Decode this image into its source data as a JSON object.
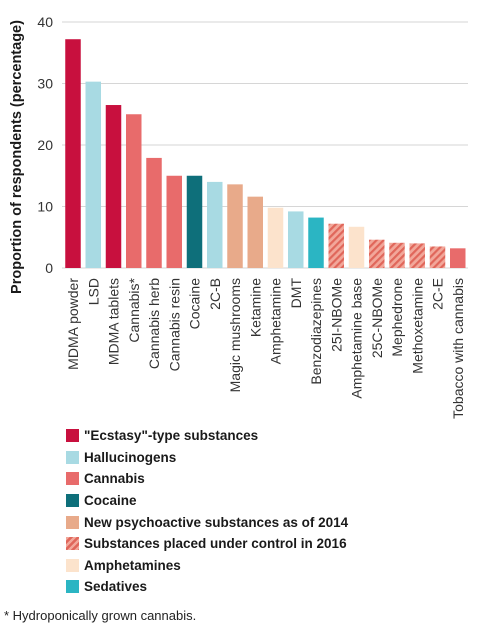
{
  "colors": {
    "ecstasy": "#C8103E",
    "hallucinogens": "#A8DAE3",
    "cannabis": "#E86B6B",
    "cocaine": "#0E6F7A",
    "nps": "#E8AA8A",
    "controlled_2016": "#F2A79A",
    "controlled_2016_stripe": "#E0665A",
    "amphetamines": "#FCE3CC",
    "sedatives": "#2BB5C3",
    "grid": "#d6d6d6",
    "tick_text": "#333333"
  },
  "chart_data": {
    "type": "bar",
    "ylabel": "Proportion of respondents (percentage)",
    "ylim": [
      0,
      40
    ],
    "yticks": [
      0,
      10,
      20,
      30,
      40
    ],
    "grid": true,
    "categories": [
      "MDMA powder",
      "LSD",
      "MDMA tablets",
      "Cannabis*",
      "Cannabis herb",
      "Cannabis resin",
      "Cocaine",
      "2C-B",
      "Magic mushrooms",
      "Ketamine",
      "Amphetamine",
      "DMT",
      "Benzodiazepines",
      "25I-NBOMe",
      "Amphetamine base",
      "25C-NBOMe",
      "Mephedrone",
      "Methoxetamine",
      "2C-E",
      "Tobacco with cannabis"
    ],
    "values": [
      37.2,
      30.3,
      26.5,
      25.0,
      17.9,
      15.0,
      15.0,
      14.0,
      13.6,
      11.6,
      9.8,
      9.2,
      8.2,
      7.2,
      6.7,
      4.6,
      4.1,
      4.0,
      3.5,
      3.2
    ],
    "groups": [
      "ecstasy",
      "hallucinogens",
      "ecstasy",
      "cannabis",
      "cannabis",
      "cannabis",
      "cocaine",
      "hallucinogens",
      "nps",
      "nps",
      "amphetamines",
      "hallucinogens",
      "sedatives",
      "controlled_2016",
      "amphetamines",
      "controlled_2016",
      "controlled_2016",
      "controlled_2016",
      "controlled_2016",
      "cannabis"
    ]
  },
  "legend": [
    {
      "key": "ecstasy",
      "label": "\"Ecstasy\"-type substances"
    },
    {
      "key": "hallucinogens",
      "label": "Hallucinogens"
    },
    {
      "key": "cannabis",
      "label": "Cannabis"
    },
    {
      "key": "cocaine",
      "label": "Cocaine"
    },
    {
      "key": "nps",
      "label": "New psychoactive substances as of 2014"
    },
    {
      "key": "controlled_2016",
      "label": "Substances placed under control in 2016"
    },
    {
      "key": "amphetamines",
      "label": "Amphetamines"
    },
    {
      "key": "sedatives",
      "label": "Sedatives"
    }
  ],
  "footnote": "* Hydroponically grown cannabis."
}
